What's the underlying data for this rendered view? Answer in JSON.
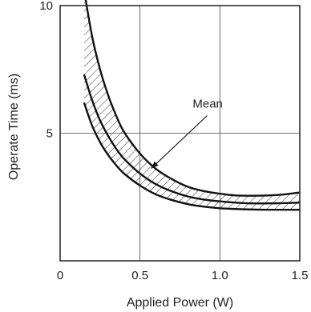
{
  "chart_data": {
    "type": "line",
    "title": "",
    "xlabel": "Applied Power (W)",
    "ylabel": "Operate Time (ms)",
    "xlim": [
      0,
      1.5
    ],
    "ylim": [
      0,
      10
    ],
    "x_ticks": [
      {
        "value": 0,
        "label": "0"
      },
      {
        "value": 0.5,
        "label": "0.5"
      },
      {
        "value": 1.0,
        "label": "1.0"
      },
      {
        "value": 1.5,
        "label": "1.5"
      }
    ],
    "y_ticks": [
      {
        "value": 5,
        "label": "5"
      },
      {
        "value": 10,
        "label": "10"
      }
    ],
    "grid": true,
    "series": [
      {
        "role": "upper",
        "x": [
          0.15,
          0.2,
          0.25,
          0.3,
          0.35,
          0.4,
          0.5,
          0.6,
          0.7,
          0.8,
          0.9,
          1.0,
          1.1,
          1.2,
          1.3,
          1.4,
          1.5
        ],
        "y": [
          10.6,
          8.8,
          7.5,
          6.5,
          5.7,
          5.05,
          4.2,
          3.6,
          3.2,
          2.9,
          2.73,
          2.63,
          2.56,
          2.55,
          2.56,
          2.6,
          2.68
        ]
      },
      {
        "role": "mean",
        "x": [
          0.15,
          0.2,
          0.25,
          0.3,
          0.35,
          0.4,
          0.5,
          0.6,
          0.7,
          0.8,
          0.9,
          1.0,
          1.1,
          1.2,
          1.3,
          1.4,
          1.5
        ],
        "y": [
          7.3,
          6.3,
          5.5,
          4.9,
          4.4,
          4.0,
          3.42,
          3.0,
          2.72,
          2.52,
          2.4,
          2.33,
          2.28,
          2.25,
          2.25,
          2.26,
          2.28
        ]
      },
      {
        "role": "lower",
        "x": [
          0.15,
          0.2,
          0.25,
          0.3,
          0.35,
          0.4,
          0.5,
          0.6,
          0.7,
          0.8,
          0.9,
          1.0,
          1.1,
          1.2,
          1.3,
          1.4,
          1.5
        ],
        "y": [
          6.2,
          5.3,
          4.65,
          4.15,
          3.75,
          3.42,
          2.95,
          2.6,
          2.38,
          2.22,
          2.12,
          2.06,
          2.03,
          2.01,
          2.0,
          2.0,
          2.0
        ]
      }
    ],
    "annotation": {
      "text": "Mean",
      "x": 0.57,
      "y": 3.62,
      "text_x": 0.95,
      "text_y": 6.0
    },
    "band_between": [
      "upper",
      "lower"
    ],
    "band_fill": "hatched",
    "line_color": "#111111",
    "axis_color": "#222222"
  }
}
